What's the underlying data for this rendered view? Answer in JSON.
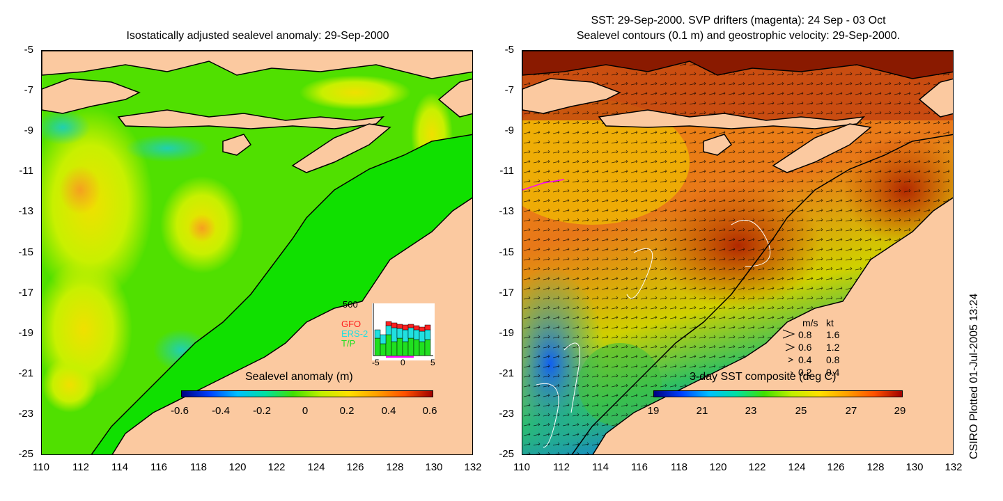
{
  "left_panel": {
    "title": "Isostatically adjusted sealevel anomaly: 29-Sep-2000",
    "colorbar": {
      "title": "Sealevel anomaly (m)",
      "ticks": [
        "-0.6",
        "-0.4",
        "-0.2",
        "0",
        "0.2",
        "0.4",
        "0.6"
      ],
      "colors": [
        "#00007f",
        "#0040ff",
        "#00c0ff",
        "#00e0a0",
        "#40e000",
        "#c0f000",
        "#ffe000",
        "#ffa000",
        "#ff5000",
        "#a00000"
      ]
    },
    "histogram": {
      "y_max_label": "500",
      "x_tick_labels": [
        "-5",
        "0",
        "5"
      ],
      "satellites": [
        {
          "name": "GFO",
          "color": "#ff2020"
        },
        {
          "name": "ERS-2",
          "color": "#20e0e0"
        },
        {
          "name": "T/P",
          "color": "#20e020"
        }
      ]
    }
  },
  "right_panel": {
    "title_line1": "SST: 29-Sep-2000. SVP drifters (magenta): 24 Sep - 03 Oct",
    "title_line2": "Sealevel contours (0.1 m) and geostrophic velocity: 29-Sep-2000.",
    "colorbar": {
      "title": "3-day SST composite (deg C)",
      "ticks": [
        "19",
        "21",
        "23",
        "25",
        "27",
        "29"
      ],
      "colors": [
        "#00007f",
        "#0040ff",
        "#00c0ff",
        "#00e0a0",
        "#40e000",
        "#c0f000",
        "#ffe000",
        "#ffa000",
        "#ff5000",
        "#a00000"
      ]
    },
    "velocity_legend": {
      "header_ms": "m/s",
      "header_kt": "kt",
      "rows": [
        {
          "ms": "0.8",
          "kt": "1.6"
        },
        {
          "ms": "0.6",
          "kt": "1.2"
        },
        {
          "ms": "0.4",
          "kt": "0.8"
        },
        {
          "ms": "0.2",
          "kt": "0.4"
        }
      ]
    }
  },
  "axes": {
    "y_ticks": [
      "-5",
      "-7",
      "-9",
      "-11",
      "-13",
      "-15",
      "-17",
      "-19",
      "-21",
      "-23",
      "-25"
    ],
    "x_ticks": [
      "110",
      "112",
      "114",
      "116",
      "118",
      "120",
      "122",
      "124",
      "126",
      "128",
      "130",
      "132"
    ]
  },
  "footer": {
    "plot_note": "CSIRO Plotted 01-Jul-2005 13:24"
  },
  "colors": {
    "land": "#fbc9a0",
    "ocean_green": "#10e000",
    "sst_warm": "#e06010",
    "sst_hot": "#b83000",
    "sst_cool": "#30c080"
  }
}
